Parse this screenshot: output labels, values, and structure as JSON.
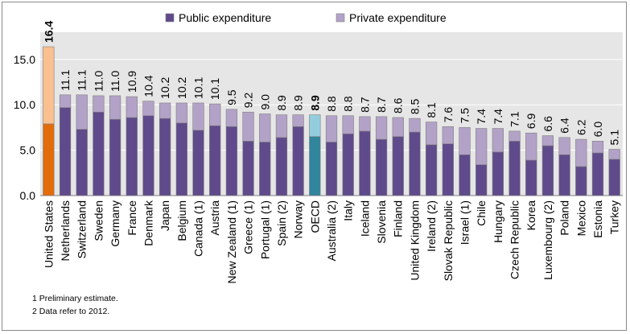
{
  "chart_data": {
    "type": "bar",
    "stacked": true,
    "title": "",
    "xlabel": "",
    "ylabel": "",
    "ylim": [
      0,
      18
    ],
    "yticks": [
      "0.0",
      "5.0",
      "10.0",
      "15.0"
    ],
    "legend_position": "top",
    "categories": [
      "United States",
      "Netherlands",
      "Switzerland",
      "Sweden",
      "Germany",
      "France",
      "Denmark",
      "Japan",
      "Belgium",
      "Canada (1)",
      "Austria",
      "New Zealand (1)",
      "Greece (1)",
      "Portugal (1)",
      "Spain (2)",
      "Norway",
      "OECD",
      "Australia (2)",
      "Italy",
      "Iceland",
      "Slovenia",
      "Finland",
      "United Kingdom",
      "Ireland (2)",
      "Slovak Republic",
      "Israel (1)",
      "Chile",
      "Hungary",
      "Czech Republic",
      "Korea",
      "Luxembourg (2)",
      "Poland",
      "Mexico",
      "Estonia",
      "Turkey"
    ],
    "series": [
      {
        "name": "Public expenditure",
        "values": [
          7.9,
          9.7,
          7.3,
          9.2,
          8.4,
          8.6,
          8.8,
          8.5,
          8.0,
          7.2,
          7.7,
          7.6,
          6.0,
          5.9,
          6.4,
          7.6,
          6.5,
          5.9,
          6.8,
          7.1,
          6.2,
          6.5,
          7.0,
          5.6,
          5.7,
          4.5,
          3.4,
          4.8,
          6.0,
          3.9,
          5.5,
          4.5,
          3.2,
          4.7,
          4.0
        ]
      },
      {
        "name": "Private expenditure",
        "values": [
          8.5,
          1.4,
          3.8,
          1.8,
          2.6,
          2.3,
          1.6,
          1.7,
          2.2,
          3.0,
          2.4,
          1.9,
          3.2,
          3.1,
          2.5,
          1.3,
          2.4,
          2.9,
          2.0,
          1.6,
          2.5,
          2.1,
          1.5,
          2.5,
          1.9,
          3.0,
          4.0,
          2.6,
          1.1,
          3.0,
          1.1,
          1.9,
          3.0,
          1.3,
          1.1
        ]
      }
    ],
    "totals": [
      "16.4",
      "11.1",
      "11.1",
      "11.0",
      "11.0",
      "10.9",
      "10.4",
      "10.2",
      "10.2",
      "10.1",
      "10.1",
      "9.5",
      "9.2",
      "9.0",
      "8.9",
      "8.9",
      "8.9",
      "8.8",
      "8.8",
      "8.7",
      "8.7",
      "8.6",
      "8.5",
      "8.1",
      "7.6",
      "7.5",
      "7.4",
      "7.4",
      "7.1",
      "6.9",
      "6.6",
      "6.4",
      "6.2",
      "6.0",
      "5.1"
    ],
    "bold_totals": [
      0,
      16
    ],
    "highlight": {
      "United States": [
        "#e26b0a",
        "#fac090"
      ],
      "OECD": [
        "#31859c",
        "#93cddd"
      ]
    },
    "colors": {
      "public": "#5f4b8b",
      "private": "#b3a2c7",
      "plot_bg": "#e6e6e6",
      "bar_border": "#7f7f7f"
    }
  },
  "notes": [
    "1 Preliminary estimate.",
    "2 Data refer to 2012."
  ]
}
